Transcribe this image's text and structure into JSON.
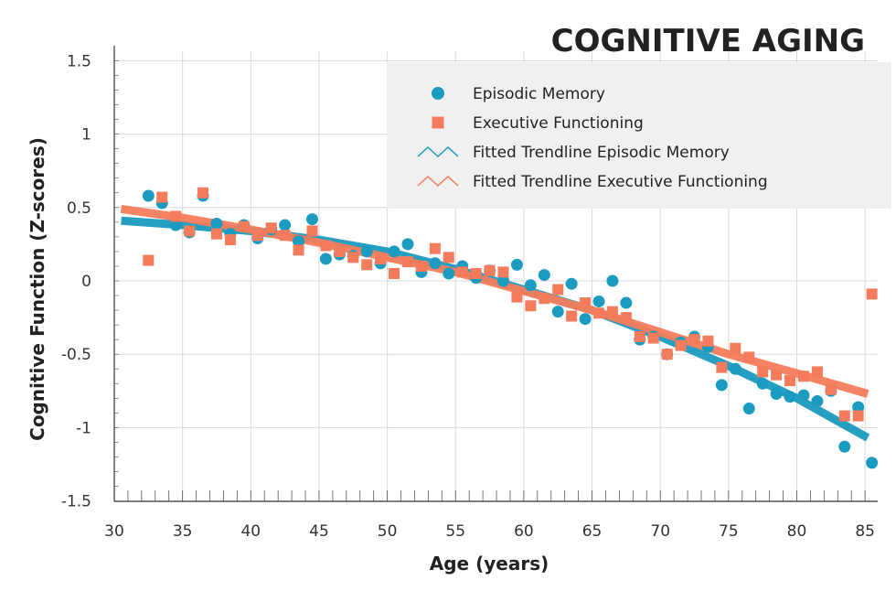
{
  "chart_data": {
    "type": "scatter",
    "title": "COGNITIVE AGING",
    "xlabel": "Age (years)",
    "ylabel": "Cognitive Function (Z-scores)",
    "xlim": [
      30,
      85.5
    ],
    "ylim": [
      -1.5,
      1.6
    ],
    "x_ticks": [
      "30",
      "35",
      "40",
      "45",
      "50",
      "55",
      "60",
      "65",
      "70",
      "75",
      "80",
      "85"
    ],
    "y_ticks": [
      "1.5",
      "1",
      "0.5",
      "0",
      "-0.5",
      "-1",
      "-1.5"
    ],
    "grid": true,
    "legend_position": "top-right",
    "colors": {
      "episodic": "#1a9bbf",
      "executive": "#f47c5c",
      "legend_bg": "#f0f0f0",
      "grid": "#d9d9d9"
    },
    "series": [
      {
        "name": "Episodic Memory",
        "kind": "scatter",
        "marker": "circle",
        "points": [
          [
            32.5,
            0.58
          ],
          [
            33.5,
            0.53
          ],
          [
            34.5,
            0.38
          ],
          [
            35.5,
            0.33
          ],
          [
            36.5,
            0.58
          ],
          [
            37.5,
            0.39
          ],
          [
            38.5,
            0.32
          ],
          [
            39.5,
            0.38
          ],
          [
            40.5,
            0.29
          ],
          [
            41.5,
            0.35
          ],
          [
            42.5,
            0.38
          ],
          [
            43.5,
            0.27
          ],
          [
            44.5,
            0.42
          ],
          [
            45.5,
            0.15
          ],
          [
            46.5,
            0.18
          ],
          [
            47.5,
            0.17
          ],
          [
            48.5,
            0.2
          ],
          [
            49.5,
            0.12
          ],
          [
            50.5,
            0.2
          ],
          [
            51.5,
            0.25
          ],
          [
            52.5,
            0.06
          ],
          [
            53.5,
            0.12
          ],
          [
            54.5,
            0.05
          ],
          [
            55.5,
            0.1
          ],
          [
            56.5,
            0.02
          ],
          [
            57.5,
            0.07
          ],
          [
            58.5,
            0.0
          ],
          [
            59.5,
            0.11
          ],
          [
            60.5,
            -0.03
          ],
          [
            61.5,
            0.04
          ],
          [
            62.5,
            -0.21
          ],
          [
            63.5,
            -0.02
          ],
          [
            64.5,
            -0.26
          ],
          [
            65.5,
            -0.14
          ],
          [
            66.5,
            0.0
          ],
          [
            67.5,
            -0.15
          ],
          [
            68.5,
            -0.4
          ],
          [
            69.5,
            -0.38
          ],
          [
            70.5,
            -0.5
          ],
          [
            71.5,
            -0.42
          ],
          [
            72.5,
            -0.38
          ],
          [
            73.5,
            -0.45
          ],
          [
            74.5,
            -0.71
          ],
          [
            75.5,
            -0.6
          ],
          [
            76.5,
            -0.87
          ],
          [
            77.5,
            -0.7
          ],
          [
            78.5,
            -0.77
          ],
          [
            79.5,
            -0.79
          ],
          [
            80.5,
            -0.78
          ],
          [
            81.5,
            -0.82
          ],
          [
            82.5,
            -0.75
          ],
          [
            83.5,
            -1.13
          ],
          [
            84.5,
            -0.86
          ],
          [
            85.5,
            -1.24
          ]
        ]
      },
      {
        "name": "Executive Functioning",
        "kind": "scatter",
        "marker": "square",
        "points": [
          [
            32.5,
            0.14
          ],
          [
            33.5,
            0.57
          ],
          [
            34.5,
            0.44
          ],
          [
            35.5,
            0.34
          ],
          [
            36.5,
            0.6
          ],
          [
            37.5,
            0.32
          ],
          [
            38.5,
            0.28
          ],
          [
            39.5,
            0.37
          ],
          [
            40.5,
            0.31
          ],
          [
            41.5,
            0.36
          ],
          [
            42.5,
            0.31
          ],
          [
            43.5,
            0.21
          ],
          [
            44.5,
            0.34
          ],
          [
            45.5,
            0.24
          ],
          [
            46.5,
            0.2
          ],
          [
            47.5,
            0.16
          ],
          [
            48.5,
            0.11
          ],
          [
            49.5,
            0.15
          ],
          [
            50.5,
            0.05
          ],
          [
            51.5,
            0.13
          ],
          [
            52.5,
            0.1
          ],
          [
            53.5,
            0.22
          ],
          [
            54.5,
            0.16
          ],
          [
            55.5,
            0.06
          ],
          [
            56.5,
            0.05
          ],
          [
            57.5,
            0.07
          ],
          [
            58.5,
            0.06
          ],
          [
            59.5,
            -0.11
          ],
          [
            60.5,
            -0.17
          ],
          [
            61.5,
            -0.12
          ],
          [
            62.5,
            -0.06
          ],
          [
            63.5,
            -0.24
          ],
          [
            64.5,
            -0.15
          ],
          [
            65.5,
            -0.22
          ],
          [
            66.5,
            -0.21
          ],
          [
            67.5,
            -0.25
          ],
          [
            68.5,
            -0.38
          ],
          [
            69.5,
            -0.39
          ],
          [
            70.5,
            -0.5
          ],
          [
            71.5,
            -0.44
          ],
          [
            72.5,
            -0.4
          ],
          [
            73.5,
            -0.41
          ],
          [
            74.5,
            -0.59
          ],
          [
            75.5,
            -0.46
          ],
          [
            76.5,
            -0.52
          ],
          [
            77.5,
            -0.62
          ],
          [
            78.5,
            -0.64
          ],
          [
            79.5,
            -0.68
          ],
          [
            80.5,
            -0.65
          ],
          [
            81.5,
            -0.62
          ],
          [
            82.5,
            -0.74
          ],
          [
            83.5,
            -0.92
          ],
          [
            84.5,
            -0.92
          ],
          [
            85.5,
            -0.09
          ]
        ]
      },
      {
        "name": "Fitted Trendline Episodic Memory",
        "kind": "line",
        "points": [
          [
            30.5,
            0.41
          ],
          [
            35,
            0.38
          ],
          [
            40,
            0.34
          ],
          [
            45,
            0.28
          ],
          [
            50,
            0.2
          ],
          [
            55,
            0.08
          ],
          [
            60,
            -0.06
          ],
          [
            65,
            -0.2
          ],
          [
            70,
            -0.38
          ],
          [
            75,
            -0.58
          ],
          [
            80,
            -0.8
          ],
          [
            85.2,
            -1.07
          ]
        ]
      },
      {
        "name": "Fitted Trendline Executive Functioning",
        "kind": "line",
        "points": [
          [
            30.5,
            0.49
          ],
          [
            35,
            0.43
          ],
          [
            40,
            0.35
          ],
          [
            45,
            0.26
          ],
          [
            50,
            0.16
          ],
          [
            55,
            0.06
          ],
          [
            60,
            -0.07
          ],
          [
            65,
            -0.2
          ],
          [
            70,
            -0.35
          ],
          [
            75,
            -0.5
          ],
          [
            80,
            -0.63
          ],
          [
            85.2,
            -0.77
          ]
        ]
      }
    ]
  }
}
